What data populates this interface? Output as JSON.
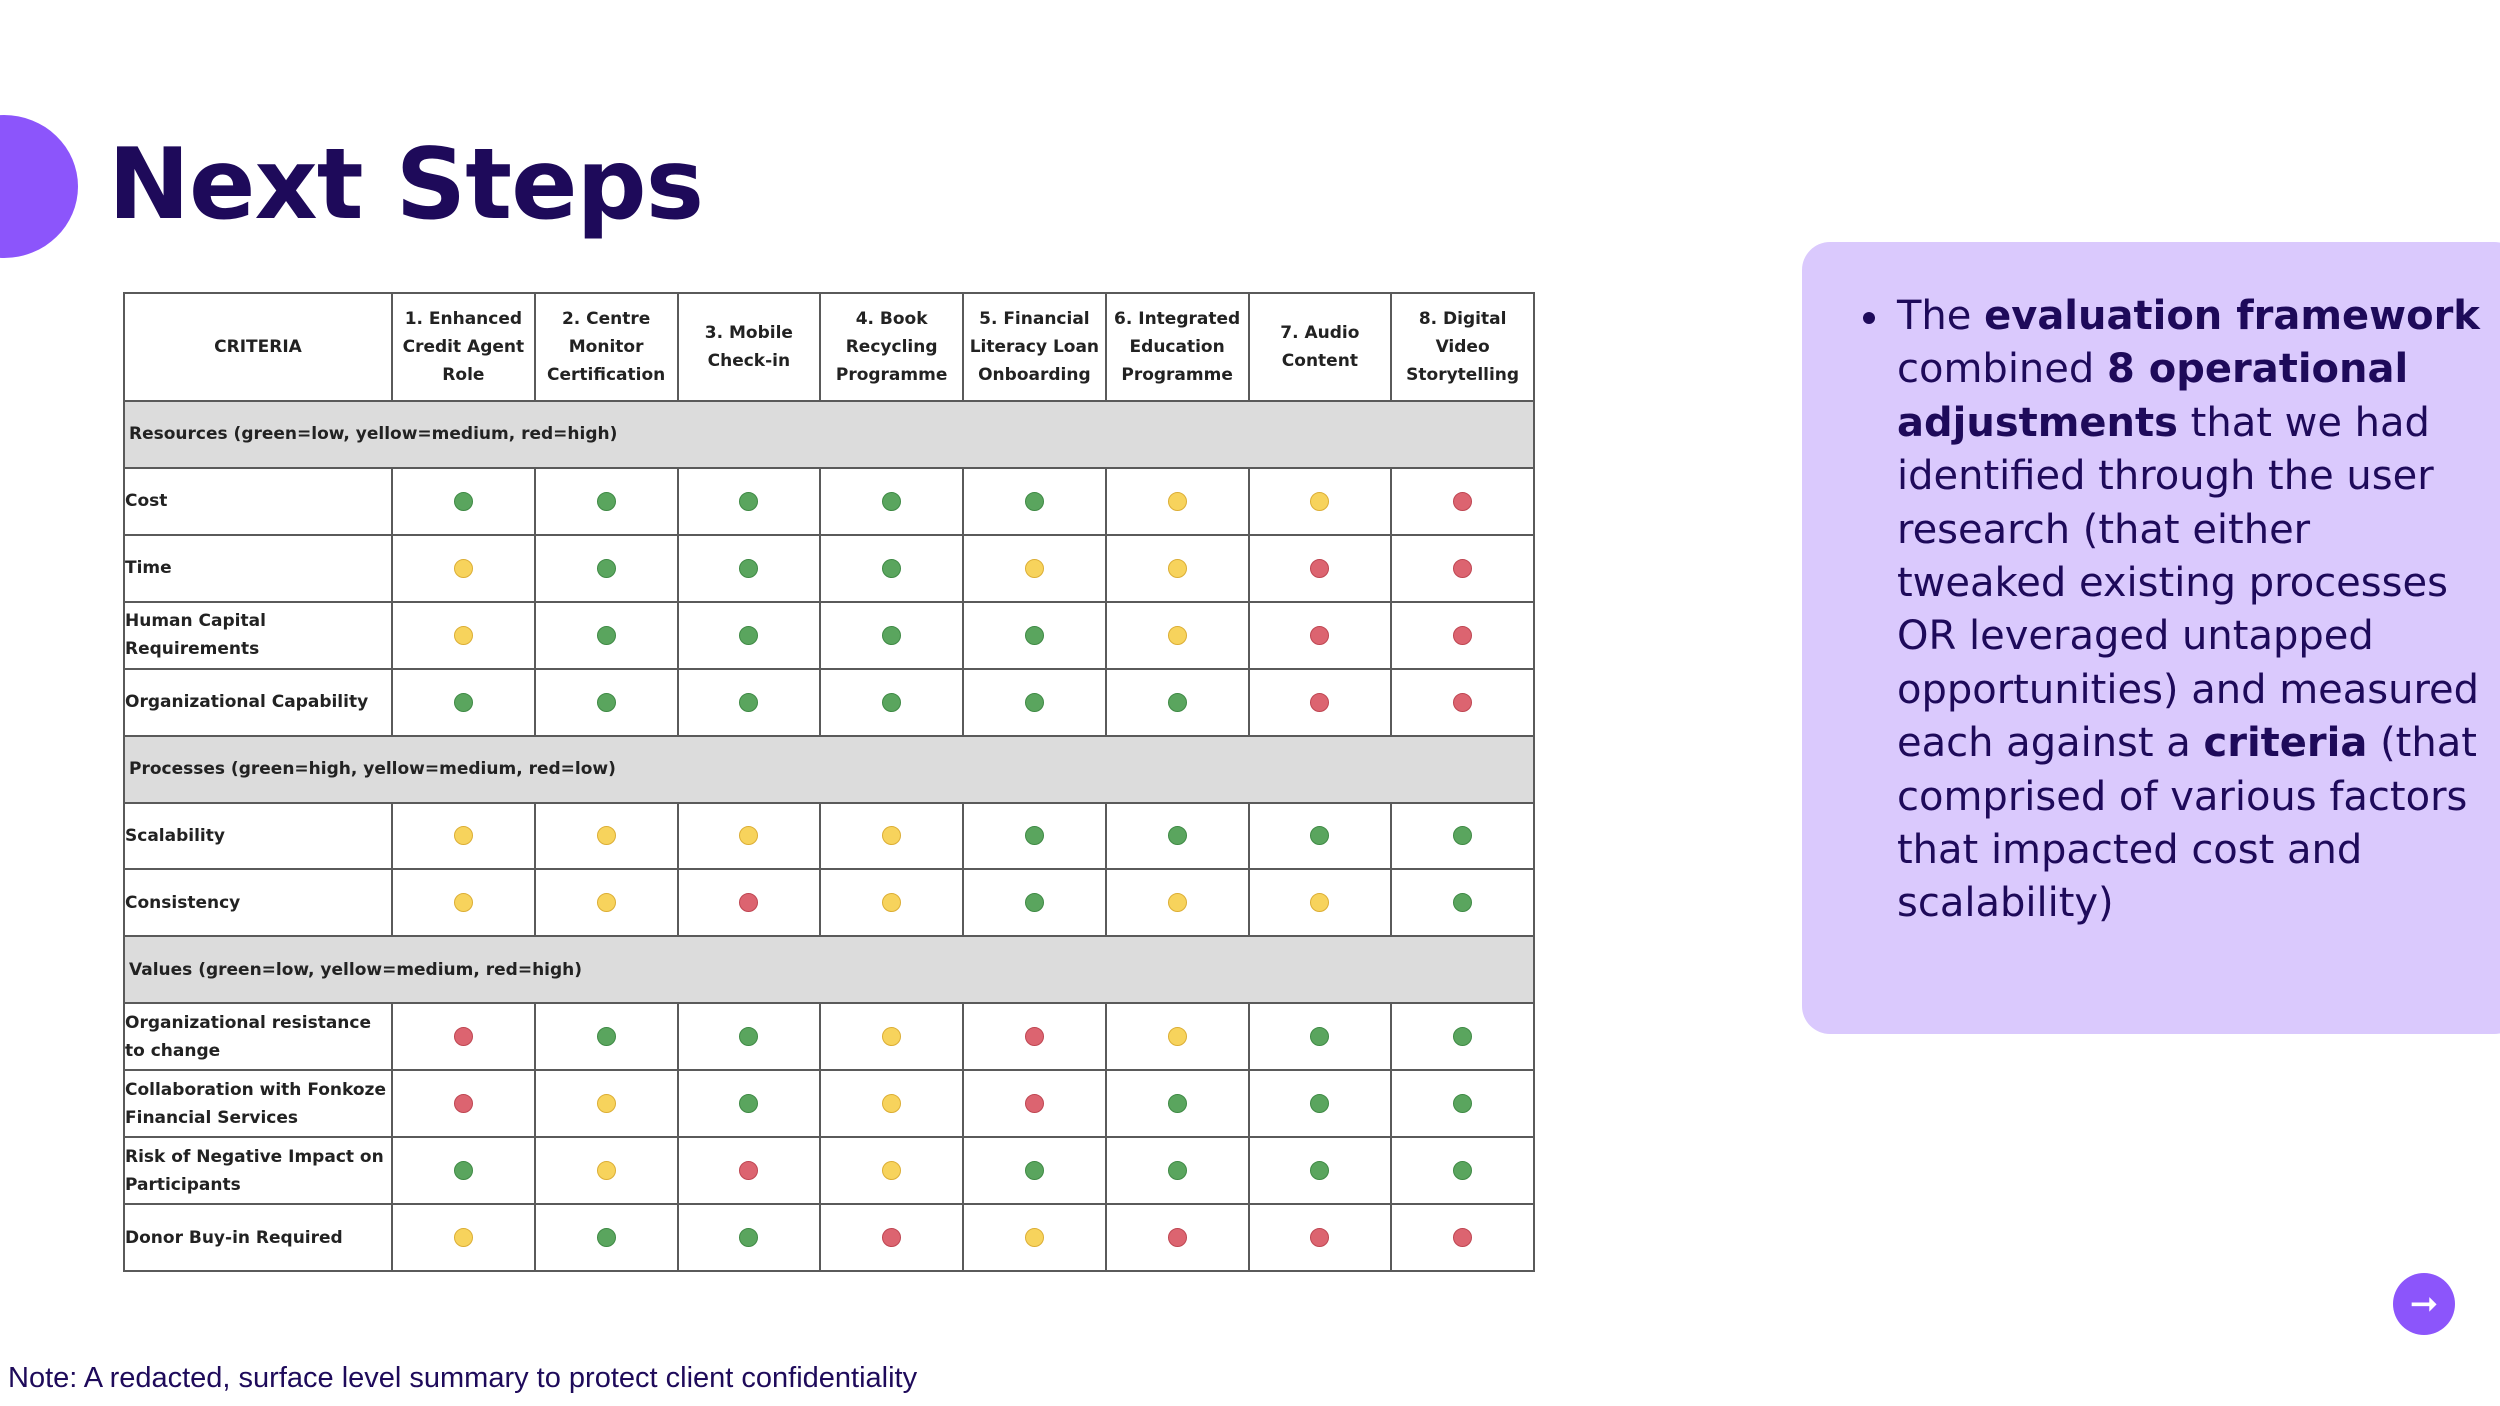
{
  "page_title": "Next Steps",
  "table": {
    "criteria_header": "CRITERIA",
    "columns": [
      "1. Enhanced Credit Agent Role",
      "2. Centre Monitor Certification",
      "3. Mobile Check-in",
      "4. Book Recycling Programme",
      "5. Financial Literacy Loan Onboarding",
      "6. Integrated Education Programme",
      "7. Audio Content",
      "8. Digital Video Storytelling"
    ],
    "sections": [
      {
        "title": "Resources (green=low, yellow=medium, red=high)",
        "rows": [
          {
            "label": "Cost",
            "ratings": [
              "green",
              "green",
              "green",
              "green",
              "green",
              "yellow",
              "yellow",
              "red"
            ]
          },
          {
            "label": "Time",
            "ratings": [
              "yellow",
              "green",
              "green",
              "green",
              "yellow",
              "yellow",
              "red",
              "red"
            ]
          },
          {
            "label": "Human Capital Requirements",
            "ratings": [
              "yellow",
              "green",
              "green",
              "green",
              "green",
              "yellow",
              "red",
              "red"
            ]
          },
          {
            "label": "Organizational Capability",
            "ratings": [
              "green",
              "green",
              "green",
              "green",
              "green",
              "green",
              "red",
              "red"
            ]
          }
        ]
      },
      {
        "title": "Processes (green=high, yellow=medium, red=low)",
        "rows": [
          {
            "label": "Scalability",
            "ratings": [
              "yellow",
              "yellow",
              "yellow",
              "yellow",
              "green",
              "green",
              "green",
              "green"
            ]
          },
          {
            "label": "Consistency",
            "ratings": [
              "yellow",
              "yellow",
              "red",
              "yellow",
              "green",
              "yellow",
              "yellow",
              "green"
            ]
          }
        ]
      },
      {
        "title": "Values (green=low, yellow=medium, red=high)",
        "rows": [
          {
            "label": "Organizational resistance to change",
            "ratings": [
              "red",
              "green",
              "green",
              "yellow",
              "red",
              "yellow",
              "green",
              "green"
            ]
          },
          {
            "label": "Collaboration with Fonkoze Financial Services",
            "ratings": [
              "red",
              "yellow",
              "green",
              "yellow",
              "red",
              "green",
              "green",
              "green"
            ]
          },
          {
            "label": "Risk of Negative Impact on Participants",
            "ratings": [
              "green",
              "yellow",
              "red",
              "yellow",
              "green",
              "green",
              "green",
              "green"
            ]
          },
          {
            "label": "Donor Buy-in Required",
            "ratings": [
              "yellow",
              "green",
              "green",
              "red",
              "yellow",
              "red",
              "red",
              "red"
            ]
          }
        ]
      }
    ]
  },
  "side_panel": {
    "segments": [
      {
        "text": "The ",
        "bold": false
      },
      {
        "text": "evaluation framework",
        "bold": true
      },
      {
        "text": " combined ",
        "bold": false
      },
      {
        "text": "8 operational adjustments",
        "bold": true
      },
      {
        "text": " that we had identified through the user research (that either tweaked existing processes OR leveraged untapped opportunities) and measured each against a ",
        "bold": false
      },
      {
        "text": "criteria",
        "bold": true
      },
      {
        "text": " (that comprised of various factors that impacted cost and scalability)",
        "bold": false
      }
    ]
  },
  "next_button": {
    "icon": "arrow-right-icon",
    "glyph": "➞"
  },
  "footer_note": "Note: A redacted, surface level summary to protect client confidentiality",
  "colors": {
    "accent": "#8c55fb",
    "title": "#1e0a5a",
    "panel": "#dac9fd",
    "green": "#5aa55e",
    "yellow": "#f7d35c",
    "red": "#dc6470"
  }
}
